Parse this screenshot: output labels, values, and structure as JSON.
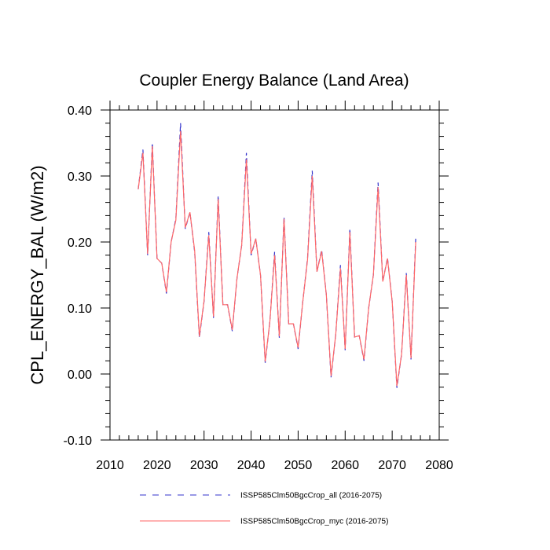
{
  "chart_data": {
    "type": "line",
    "title": "Coupler Energy Balance (Land Area)",
    "xlabel": "",
    "ylabel": "CPL_ENERGY_BAL  (W/m2)",
    "xlim": [
      2010,
      2080
    ],
    "ylim": [
      -0.1,
      0.4
    ],
    "x_ticks": [
      2010,
      2020,
      2030,
      2040,
      2050,
      2060,
      2070,
      2080
    ],
    "x_tick_labels": [
      "2010",
      "2020",
      "2030",
      "2040",
      "2050",
      "2060",
      "2070",
      "2080"
    ],
    "y_ticks": [
      -0.1,
      0.0,
      0.1,
      0.2,
      0.3,
      0.4
    ],
    "y_tick_labels": [
      "-0.10",
      "0.00",
      "0.10",
      "0.20",
      "0.30",
      "0.40"
    ],
    "x": [
      2016,
      2017,
      2018,
      2019,
      2020,
      2021,
      2022,
      2023,
      2024,
      2025,
      2026,
      2027,
      2028,
      2029,
      2030,
      2031,
      2032,
      2033,
      2034,
      2035,
      2036,
      2037,
      2038,
      2039,
      2040,
      2041,
      2042,
      2043,
      2044,
      2045,
      2046,
      2047,
      2048,
      2049,
      2050,
      2051,
      2052,
      2053,
      2054,
      2055,
      2056,
      2057,
      2058,
      2059,
      2060,
      2061,
      2062,
      2063,
      2064,
      2065,
      2066,
      2067,
      2068,
      2069,
      2070,
      2071,
      2072,
      2073,
      2074,
      2075
    ],
    "series": [
      {
        "name": "ISSP585Clm50BgcCrop_all (2016-2075)",
        "color": "#3333cc",
        "style": "dashed",
        "values": [
          0.28,
          0.34,
          0.18,
          0.35,
          0.175,
          0.168,
          0.122,
          0.2,
          0.235,
          0.38,
          0.22,
          0.245,
          0.185,
          0.055,
          0.11,
          0.215,
          0.085,
          0.27,
          0.105,
          0.105,
          0.065,
          0.145,
          0.195,
          0.335,
          0.18,
          0.205,
          0.15,
          0.017,
          0.08,
          0.185,
          0.055,
          0.238,
          0.076,
          0.076,
          0.038,
          0.11,
          0.175,
          0.308,
          0.155,
          0.188,
          0.12,
          -0.005,
          0.06,
          0.165,
          0.036,
          0.22,
          0.056,
          0.058,
          0.02,
          0.1,
          0.15,
          0.29,
          0.14,
          0.176,
          0.11,
          -0.021,
          0.03,
          0.153,
          0.022,
          0.205
        ]
      },
      {
        "name": "ISSP585Clm50BgcCrop_myc (2016-2075)",
        "color": "#ff6666",
        "style": "solid",
        "values": [
          0.28,
          0.335,
          0.182,
          0.345,
          0.175,
          0.168,
          0.124,
          0.2,
          0.233,
          0.368,
          0.222,
          0.245,
          0.187,
          0.057,
          0.111,
          0.21,
          0.087,
          0.265,
          0.105,
          0.105,
          0.067,
          0.145,
          0.195,
          0.325,
          0.182,
          0.205,
          0.15,
          0.019,
          0.08,
          0.18,
          0.057,
          0.235,
          0.076,
          0.076,
          0.04,
          0.11,
          0.173,
          0.3,
          0.155,
          0.186,
          0.12,
          -0.003,
          0.06,
          0.16,
          0.038,
          0.215,
          0.056,
          0.058,
          0.022,
          0.1,
          0.15,
          0.283,
          0.14,
          0.175,
          0.11,
          -0.018,
          0.03,
          0.15,
          0.024,
          0.2
        ]
      }
    ]
  }
}
